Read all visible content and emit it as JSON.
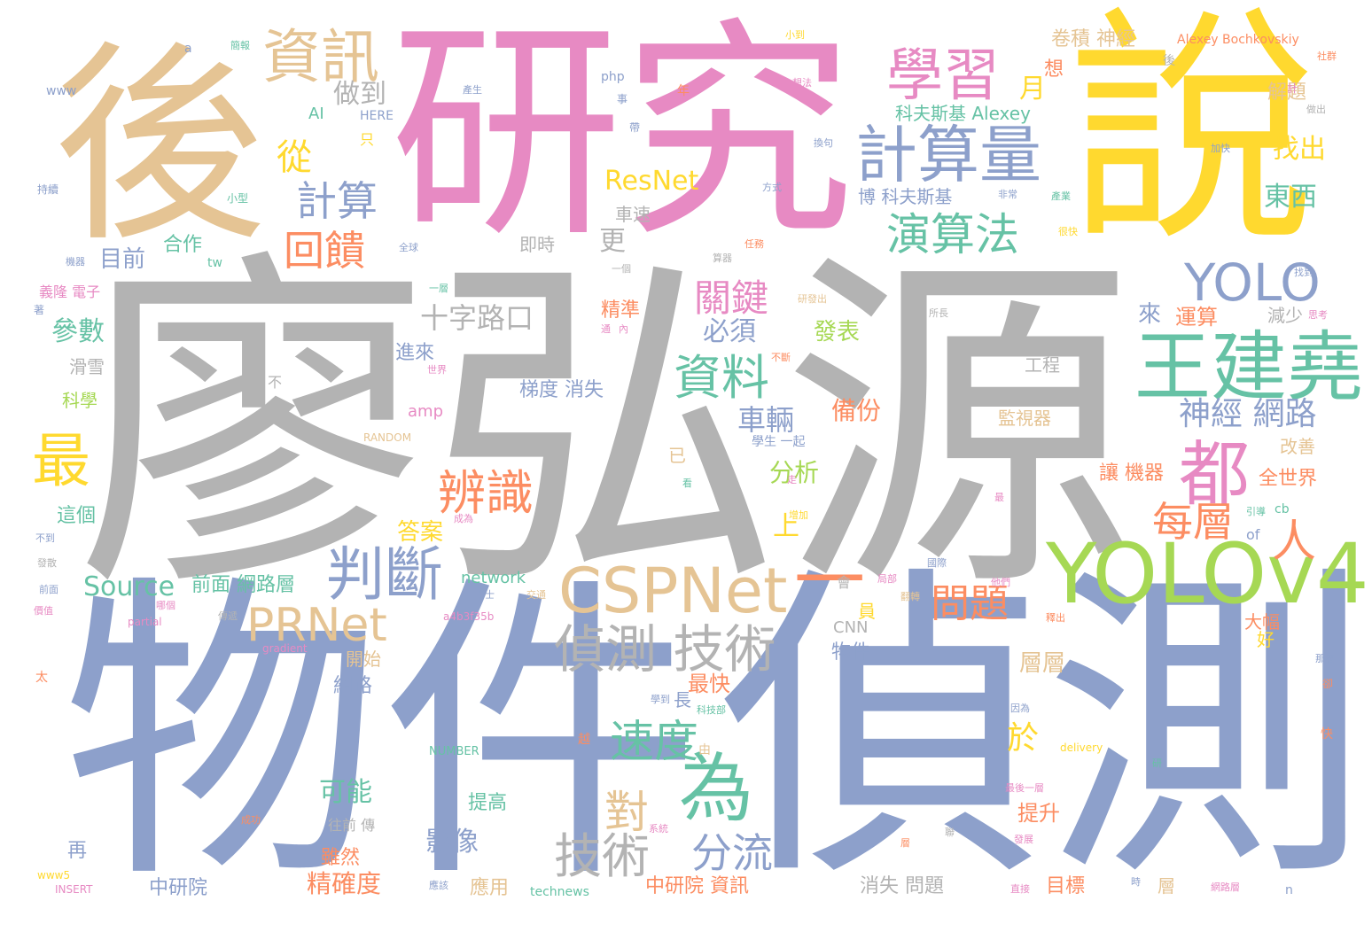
{
  "palette": {
    "gray": "#b3b3b3",
    "blue": "#8da0cb",
    "pink": "#e78ac3",
    "yellow": "#ffd92f",
    "tan": "#e5c494",
    "green": "#66c2a5",
    "orange": "#fc8d62",
    "lime": "#a6d854"
  },
  "words": [
    {
      "text": "廖弘源",
      "color": "gray"
    },
    {
      "text": "物件",
      "color": "blue"
    },
    {
      "text": "偵測",
      "color": "blue"
    },
    {
      "text": "研究",
      "color": "pink"
    },
    {
      "text": "說",
      "color": "yellow"
    },
    {
      "text": "後",
      "color": "tan"
    },
    {
      "text": "YOLOv4",
      "color": "lime"
    },
    {
      "text": "王建堯",
      "color": "green"
    },
    {
      "text": "CSPNet",
      "color": "tan"
    },
    {
      "text": "計算量",
      "color": "blue"
    },
    {
      "text": "學習",
      "color": "pink"
    },
    {
      "text": "資訊",
      "color": "tan"
    },
    {
      "text": "判斷",
      "color": "blue"
    },
    {
      "text": "YOLO",
      "color": "blue"
    },
    {
      "text": "為",
      "color": "green"
    },
    {
      "text": "都",
      "color": "pink"
    },
    {
      "text": "偵測 技術",
      "color": "gray"
    },
    {
      "text": "辨識",
      "color": "orange"
    },
    {
      "text": "資料",
      "color": "green"
    },
    {
      "text": "最",
      "color": "yellow"
    },
    {
      "text": "演算法",
      "color": "green"
    },
    {
      "text": "PRNet",
      "color": "tan"
    },
    {
      "text": "一",
      "color": "orange"
    },
    {
      "text": "技術",
      "color": "gray"
    },
    {
      "text": "速度",
      "color": "green"
    },
    {
      "text": "分流",
      "color": "blue"
    },
    {
      "text": "計算",
      "color": "blue"
    },
    {
      "text": "回饋",
      "color": "orange"
    },
    {
      "text": "關鍵",
      "color": "pink"
    },
    {
      "text": "問題",
      "color": "orange"
    },
    {
      "text": "每層",
      "color": "orange"
    },
    {
      "text": "人",
      "color": "orange"
    },
    {
      "text": "對",
      "color": "tan"
    },
    {
      "text": "神經 網路",
      "color": "blue"
    },
    {
      "text": "從",
      "color": "yellow"
    },
    {
      "text": "ResNet",
      "color": "yellow"
    },
    {
      "text": "Source",
      "color": "green"
    },
    {
      "text": "做到",
      "color": "gray"
    },
    {
      "text": "月",
      "color": "yellow"
    },
    {
      "text": "科夫斯基 Alexey",
      "color": "green"
    },
    {
      "text": "找出",
      "color": "yellow"
    },
    {
      "text": "東西",
      "color": "green"
    },
    {
      "text": "十字路口",
      "color": "gray"
    },
    {
      "text": "車輛",
      "color": "blue"
    },
    {
      "text": "必須",
      "color": "blue"
    },
    {
      "text": "參數",
      "color": "green"
    },
    {
      "text": "目前",
      "color": "blue"
    },
    {
      "text": "合作",
      "color": "green"
    },
    {
      "text": "更",
      "color": "gray"
    },
    {
      "text": "來",
      "color": "blue"
    },
    {
      "text": "運算",
      "color": "orange"
    },
    {
      "text": "減少",
      "color": "gray"
    },
    {
      "text": "發表",
      "color": "lime"
    },
    {
      "text": "備份",
      "color": "orange"
    },
    {
      "text": "分析",
      "color": "lime"
    },
    {
      "text": "答案",
      "color": "yellow"
    },
    {
      "text": "梯度 消失",
      "color": "blue"
    },
    {
      "text": "進來",
      "color": "blue"
    },
    {
      "text": "精準",
      "color": "orange"
    },
    {
      "text": "卷積 神經",
      "color": "tan"
    },
    {
      "text": "Alexey Bochkovskiy",
      "color": "orange"
    },
    {
      "text": "解題",
      "color": "tan"
    },
    {
      "text": "想",
      "color": "orange"
    },
    {
      "text": "博 科夫斯基",
      "color": "blue"
    },
    {
      "text": "車速",
      "color": "gray"
    },
    {
      "text": "即時",
      "color": "gray"
    },
    {
      "text": "工程",
      "color": "gray"
    },
    {
      "text": "監視器",
      "color": "tan"
    },
    {
      "text": "讓 機器",
      "color": "orange"
    },
    {
      "text": "全世界",
      "color": "orange"
    },
    {
      "text": "改善",
      "color": "tan"
    },
    {
      "text": "可能",
      "color": "green"
    },
    {
      "text": "提高",
      "color": "green"
    },
    {
      "text": "影像",
      "color": "blue"
    },
    {
      "text": "前面 網路層",
      "color": "green"
    },
    {
      "text": "上",
      "color": "yellow"
    },
    {
      "text": "於",
      "color": "yellow"
    },
    {
      "text": "層層",
      "color": "tan"
    },
    {
      "text": "最快",
      "color": "orange"
    },
    {
      "text": "物件",
      "color": "blue"
    },
    {
      "text": "網路",
      "color": "blue"
    },
    {
      "text": "開始",
      "color": "tan"
    },
    {
      "text": "長",
      "color": "blue"
    },
    {
      "text": "員",
      "color": "yellow"
    },
    {
      "text": "大幅",
      "color": "orange"
    },
    {
      "text": "好",
      "color": "yellow"
    },
    {
      "text": "提升",
      "color": "orange"
    },
    {
      "text": "雖然",
      "color": "orange"
    },
    {
      "text": "精確度",
      "color": "orange"
    },
    {
      "text": "中研院 資訊",
      "color": "orange"
    },
    {
      "text": "消失 問題",
      "color": "gray"
    },
    {
      "text": "目標",
      "color": "orange"
    },
    {
      "text": "層",
      "color": "tan"
    },
    {
      "text": "應用",
      "color": "tan"
    },
    {
      "text": "中研院",
      "color": "blue"
    },
    {
      "text": "再",
      "color": "blue"
    },
    {
      "text": "這個",
      "color": "green"
    },
    {
      "text": "科學",
      "color": "lime"
    },
    {
      "text": "滑雪",
      "color": "gray"
    },
    {
      "text": "network",
      "color": "green"
    },
    {
      "text": "amp",
      "color": "pink"
    },
    {
      "text": "AI",
      "color": "green"
    },
    {
      "text": "HERE",
      "color": "blue"
    },
    {
      "text": "php",
      "color": "blue"
    },
    {
      "text": "www",
      "color": "blue"
    },
    {
      "text": "tw",
      "color": "green"
    },
    {
      "text": "CNN",
      "color": "gray"
    },
    {
      "text": "of",
      "color": "blue"
    },
    {
      "text": "cb",
      "color": "green"
    },
    {
      "text": "RANDOM",
      "color": "tan"
    },
    {
      "text": "NUMBER",
      "color": "green"
    },
    {
      "text": "INSERT",
      "color": "pink"
    },
    {
      "text": "www5",
      "color": "yellow"
    },
    {
      "text": "technews",
      "color": "green"
    },
    {
      "text": "delivery",
      "color": "yellow"
    },
    {
      "text": "partial",
      "color": "pink"
    },
    {
      "text": "gradient",
      "color": "pink"
    },
    {
      "text": "a4b3f35b",
      "color": "pink"
    },
    {
      "text": "a",
      "color": "blue"
    },
    {
      "text": "n",
      "color": "blue"
    },
    {
      "text": "已",
      "color": "tan"
    },
    {
      "text": "只",
      "color": "yellow"
    },
    {
      "text": "不",
      "color": "gray"
    },
    {
      "text": "太",
      "color": "orange"
    },
    {
      "text": "快",
      "color": "orange"
    },
    {
      "text": "越",
      "color": "orange"
    },
    {
      "text": "由",
      "color": "tan"
    },
    {
      "text": "年",
      "color": "orange"
    },
    {
      "text": "事",
      "color": "blue"
    },
    {
      "text": "帶",
      "color": "blue"
    },
    {
      "text": "後",
      "color": "gray"
    },
    {
      "text": "計",
      "color": "pink"
    },
    {
      "text": "卻",
      "color": "orange"
    },
    {
      "text": "著",
      "color": "blue"
    },
    {
      "text": "會",
      "color": "gray"
    },
    {
      "text": "小型",
      "color": "green"
    },
    {
      "text": "持續",
      "color": "blue"
    },
    {
      "text": "簡報",
      "color": "green"
    },
    {
      "text": "釋出",
      "color": "orange"
    },
    {
      "text": "小到",
      "color": "yellow"
    },
    {
      "text": "產生",
      "color": "blue"
    },
    {
      "text": "想法",
      "color": "pink"
    },
    {
      "text": "社群",
      "color": "orange"
    },
    {
      "text": "做出",
      "color": "gray"
    },
    {
      "text": "加快",
      "color": "blue"
    },
    {
      "text": "換句",
      "color": "blue"
    },
    {
      "text": "方式",
      "color": "blue"
    },
    {
      "text": "非常",
      "color": "blue"
    },
    {
      "text": "產業",
      "color": "green"
    },
    {
      "text": "很快",
      "color": "yellow"
    },
    {
      "text": "找到",
      "color": "blue"
    },
    {
      "text": "全球",
      "color": "blue"
    },
    {
      "text": "任務",
      "color": "orange"
    },
    {
      "text": "算器",
      "color": "gray"
    },
    {
      "text": "機器",
      "color": "blue"
    },
    {
      "text": "一個",
      "color": "gray"
    },
    {
      "text": "一層",
      "color": "green"
    },
    {
      "text": "義隆 電子",
      "color": "pink"
    },
    {
      "text": "研發出",
      "color": "tan"
    },
    {
      "text": "所長",
      "color": "gray"
    },
    {
      "text": "思考",
      "color": "pink"
    },
    {
      "text": "世界",
      "color": "pink"
    },
    {
      "text": "不斷",
      "color": "orange"
    },
    {
      "text": "國際",
      "color": "blue"
    },
    {
      "text": "局部",
      "color": "pink"
    },
    {
      "text": "翻轉",
      "color": "tan"
    },
    {
      "text": "他們",
      "color": "pink"
    },
    {
      "text": "博士",
      "color": "blue"
    },
    {
      "text": "交通",
      "color": "tan"
    },
    {
      "text": "前面",
      "color": "blue"
    },
    {
      "text": "不到",
      "color": "blue"
    },
    {
      "text": "發散",
      "color": "gray"
    },
    {
      "text": "價值",
      "color": "pink"
    },
    {
      "text": "哪個",
      "color": "pink"
    },
    {
      "text": "傳遞",
      "color": "gray"
    },
    {
      "text": "引導",
      "color": "green"
    },
    {
      "text": "成為",
      "color": "pink"
    },
    {
      "text": "增加",
      "color": "yellow"
    },
    {
      "text": "學生 一起",
      "color": "blue"
    },
    {
      "text": "學到",
      "color": "blue"
    },
    {
      "text": "科技部",
      "color": "green"
    },
    {
      "text": "因為",
      "color": "blue"
    },
    {
      "text": "最後一層",
      "color": "pink"
    },
    {
      "text": "成功",
      "color": "orange"
    },
    {
      "text": "往前 傳",
      "color": "gray"
    },
    {
      "text": "系統",
      "color": "pink"
    },
    {
      "text": "時",
      "color": "blue"
    },
    {
      "text": "應該",
      "color": "blue"
    },
    {
      "text": "網路層",
      "color": "pink"
    },
    {
      "text": "直接",
      "color": "pink"
    },
    {
      "text": "發展",
      "color": "pink"
    },
    {
      "text": "層",
      "color": "orange"
    },
    {
      "text": "最",
      "color": "pink"
    },
    {
      "text": "通",
      "color": "pink"
    },
    {
      "text": "聯",
      "color": "gray"
    },
    {
      "text": "內",
      "color": "pink"
    },
    {
      "text": "走",
      "color": "pink"
    },
    {
      "text": "看",
      "color": "green"
    },
    {
      "text": "研",
      "color": "green"
    },
    {
      "text": "那麼",
      "color": "blue"
    }
  ]
}
